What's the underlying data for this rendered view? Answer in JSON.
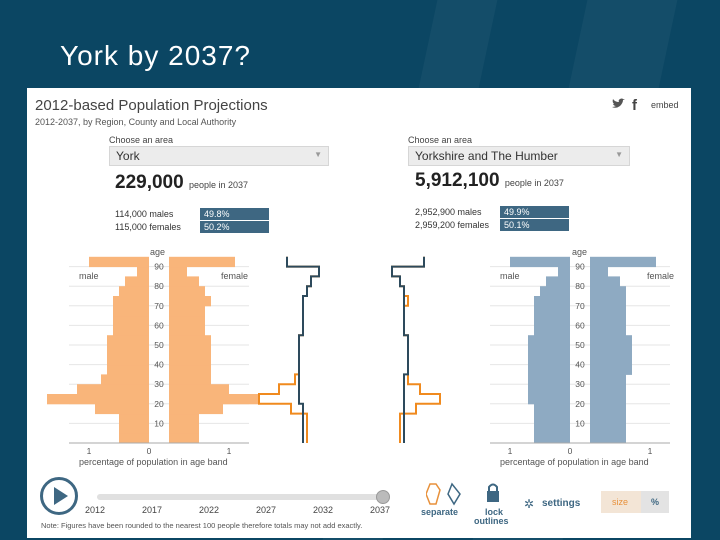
{
  "slide": {
    "title": "York by 2037?"
  },
  "header": {
    "title": "2012-based Population Projections",
    "subtitle": "2012-2037, by Region, County and Local Authority",
    "share": {
      "twitter_icon": "twitter-icon",
      "facebook_icon": "facebook-icon",
      "embed_label": "embed"
    }
  },
  "left_area": {
    "choose_label": "Choose an area",
    "selected": "York",
    "population": "229,000",
    "population_unit": "people in 2037",
    "males": "114,000 males",
    "females": "115,000 females",
    "male_pct": "49.8%",
    "female_pct": "50.2%"
  },
  "right_area": {
    "choose_label": "Choose an area",
    "selected": "Yorkshire and The Humber",
    "population": "5,912,100",
    "population_unit": "people in 2037",
    "males": "2,952,900 males",
    "females": "2,959,200 females",
    "male_pct": "49.9%",
    "female_pct": "50.1%"
  },
  "labels": {
    "male": "male",
    "female": "female",
    "age": "age",
    "xlabel": "percentage of population in age band"
  },
  "chart_data": [
    {
      "type": "bar",
      "title": "York",
      "ylabel": "age",
      "xlabel": "percentage of population in age band",
      "age_ticks": [
        10,
        20,
        30,
        40,
        50,
        60,
        70,
        80,
        90
      ],
      "x_ticks": [
        "1",
        "0",
        "1"
      ],
      "color": "#f9b57a",
      "age_bands": [
        0,
        5,
        10,
        15,
        20,
        25,
        30,
        35,
        40,
        45,
        50,
        55,
        60,
        65,
        70,
        75,
        80,
        85,
        90
      ],
      "series": [
        {
          "name": "male",
          "values": [
            0.5,
            0.5,
            0.5,
            0.9,
            1.7,
            1.2,
            0.8,
            0.7,
            0.7,
            0.7,
            0.7,
            0.6,
            0.6,
            0.6,
            0.6,
            0.5,
            0.4,
            0.2,
            1.0
          ]
        },
        {
          "name": "female",
          "values": [
            0.5,
            0.5,
            0.5,
            0.9,
            1.5,
            1.0,
            0.7,
            0.7,
            0.7,
            0.7,
            0.7,
            0.6,
            0.6,
            0.6,
            0.7,
            0.6,
            0.5,
            0.3,
            1.1
          ]
        }
      ]
    },
    {
      "type": "bar",
      "title": "Yorkshire and The Humber",
      "ylabel": "age",
      "xlabel": "percentage of population in age band",
      "age_ticks": [
        10,
        20,
        30,
        40,
        50,
        60,
        70,
        80,
        90
      ],
      "x_ticks": [
        "1",
        "0",
        "1"
      ],
      "color": "#8eaac2",
      "age_bands": [
        0,
        5,
        10,
        15,
        20,
        25,
        30,
        35,
        40,
        45,
        50,
        55,
        60,
        65,
        70,
        75,
        80,
        85,
        90
      ],
      "series": [
        {
          "name": "male",
          "values": [
            0.6,
            0.6,
            0.6,
            0.6,
            0.7,
            0.7,
            0.7,
            0.7,
            0.7,
            0.7,
            0.7,
            0.6,
            0.6,
            0.6,
            0.6,
            0.5,
            0.4,
            0.2,
            1.0
          ]
        },
        {
          "name": "female",
          "values": [
            0.6,
            0.6,
            0.6,
            0.6,
            0.6,
            0.6,
            0.6,
            0.7,
            0.7,
            0.7,
            0.7,
            0.6,
            0.6,
            0.6,
            0.6,
            0.6,
            0.5,
            0.3,
            1.1
          ]
        }
      ]
    }
  ],
  "controls": {
    "play_icon": "play-icon",
    "timeline_years": [
      "2012",
      "2017",
      "2022",
      "2027",
      "2032",
      "2037"
    ],
    "current_year": "2037",
    "separate_label": "separate",
    "lock_label": "lock",
    "outlines_label": "outlines",
    "settings_label": "settings",
    "size_label": "size",
    "percent_label": "%"
  },
  "footnote": "Note: Figures have been rounded to the nearest 100 people therefore totals may not add exactly.",
  "colors": {
    "york": "#f9b57a",
    "region": "#8eaac2",
    "york_line": "#f08a1e",
    "region_line": "#2d4a5c",
    "pct_box": "#3e6782",
    "slide_bg": "#0b4663"
  }
}
